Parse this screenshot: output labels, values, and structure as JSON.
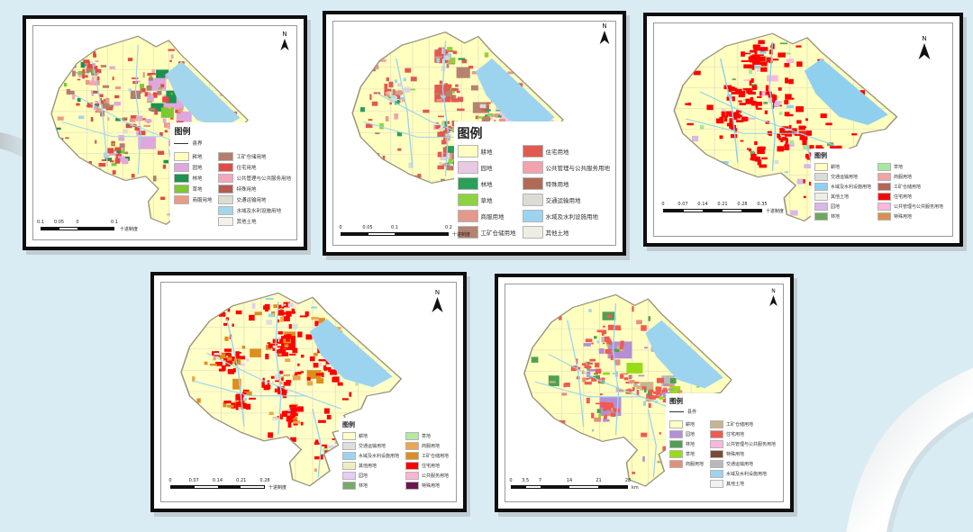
{
  "page": {
    "background": "#d9ecf4",
    "panel_border": "#0e0e0e",
    "panel_shadow": "#c0ccd2"
  },
  "maps": [
    {
      "north_label": "N",
      "legend": {
        "title": "图例",
        "line_item": "县界",
        "items_left": [
          {
            "label": "耕地",
            "color": "#FFFFBE"
          },
          {
            "label": "园地",
            "color": "#DFA8DC"
          },
          {
            "label": "林地",
            "color": "#1D9150"
          },
          {
            "label": "草地",
            "color": "#7FC832"
          },
          {
            "label": "商服用地",
            "color": "#E89B85"
          }
        ],
        "items_right": [
          {
            "label": "工矿仓储用地",
            "color": "#B57D6E"
          },
          {
            "label": "住宅用地",
            "color": "#E14B45"
          },
          {
            "label": "公共管理与公共服务用地",
            "color": "#F4A7B9"
          },
          {
            "label": "特殊用地",
            "color": "#B55A50"
          },
          {
            "label": "交通运输用地",
            "color": "#DCDCD2"
          },
          {
            "label": "水域及水利设施用地",
            "color": "#A3D5EC"
          },
          {
            "label": "其他土地",
            "color": "#F2F2EA"
          }
        ]
      },
      "scale": {
        "labels": [
          "0.1",
          "0.05",
          "0",
          "0.1"
        ],
        "unit": "十进制度"
      }
    },
    {
      "north_label": "N",
      "legend": {
        "title": "图例",
        "items_left": [
          {
            "label": "耕地",
            "color": "#FFFFC0"
          },
          {
            "label": "园地",
            "color": "#E7C9E3"
          },
          {
            "label": "林地",
            "color": "#2B9E57"
          },
          {
            "label": "草地",
            "color": "#8ED23F"
          },
          {
            "label": "商服用地",
            "color": "#E29A8C"
          },
          {
            "label": "工矿仓储用地",
            "color": "#B5836F"
          }
        ],
        "items_right": [
          {
            "label": "住宅用地",
            "color": "#E05A50"
          },
          {
            "label": "公共管理与公共服务用地",
            "color": "#F2A3AE"
          },
          {
            "label": "特殊用地",
            "color": "#B06A55"
          },
          {
            "label": "交通运输用地",
            "color": "#DCDCD4"
          },
          {
            "label": "水域及水利设施用地",
            "color": "#9CD4F0"
          },
          {
            "label": "其他土地",
            "color": "#EDEDE3"
          }
        ]
      },
      "scale": {
        "labels": [
          "0",
          "0.05",
          "0.1",
          "0.2"
        ],
        "unit": "十进制度"
      }
    },
    {
      "north_label": "N",
      "legend": {
        "title": "图例",
        "items_left": [
          {
            "label": "耕地",
            "color": "#FFFFC0"
          },
          {
            "label": "交通运输用地",
            "color": "#DCDCD4"
          },
          {
            "label": "水域及水利设施用地",
            "color": "#8FD0EF"
          },
          {
            "label": "其他土地",
            "color": "#EFEFE7"
          },
          {
            "label": "园地",
            "color": "#D9B7E6"
          },
          {
            "label": "林地",
            "color": "#6FA75E"
          }
        ],
        "items_right": [
          {
            "label": "草地",
            "color": "#A5E8A0"
          },
          {
            "label": "商服用地",
            "color": "#F2A3A3"
          },
          {
            "label": "工矿仓储用地",
            "color": "#B56456"
          },
          {
            "label": "住宅用地",
            "color": "#FE0000"
          },
          {
            "label": "公共管理与公共服务用地",
            "color": "#FFB6DC"
          },
          {
            "label": "特殊用地",
            "color": "#DC8E50"
          }
        ]
      },
      "scale": {
        "labels": [
          "0",
          "0.07",
          "0.14",
          "0.21",
          "0.28",
          "0.35"
        ],
        "unit": "十进制度"
      }
    },
    {
      "north_label": "N",
      "legend": {
        "title": "图例",
        "items_left": [
          {
            "label": "耕地",
            "color": "#FFFFC8"
          },
          {
            "label": "交通运输用地",
            "color": "#DEDEDE"
          },
          {
            "label": "水域及水利设施用地",
            "color": "#9CD4F0"
          },
          {
            "label": "其他用地",
            "color": "#EFEDBF"
          },
          {
            "label": "园地",
            "color": "#E7CCF5"
          },
          {
            "label": "林地",
            "color": "#7BA96B"
          }
        ],
        "items_right": [
          {
            "label": "草地",
            "color": "#B7E8A3"
          },
          {
            "label": "商服用地",
            "color": "#E8A84F"
          },
          {
            "label": "工矿仓储用地",
            "color": "#DE8E1E"
          },
          {
            "label": "住宅用地",
            "color": "#FE0000"
          },
          {
            "label": "公共服务用地",
            "color": "#FFB4D2"
          },
          {
            "label": "特殊用地",
            "color": "#6E1650"
          }
        ]
      },
      "scale": {
        "labels": [
          "0",
          "0.07",
          "0.14",
          "0.21",
          "0.28"
        ],
        "unit": "十进制度"
      }
    },
    {
      "north_label": "N",
      "legend": {
        "title": "图例",
        "line_item": "县界",
        "items_left": [
          {
            "label": "耕地",
            "color": "#FFFFC0"
          },
          {
            "label": "园地",
            "color": "#B48FD4"
          },
          {
            "label": "林地",
            "color": "#4FA050"
          },
          {
            "label": "草地",
            "color": "#97DC16"
          },
          {
            "label": "商服用地",
            "color": "#E2907B"
          }
        ],
        "items_right": [
          {
            "label": "工矿仓储用地",
            "color": "#C9B48E"
          },
          {
            "label": "住宅用地",
            "color": "#F05A50"
          },
          {
            "label": "公共管理与公共服务用地",
            "color": "#FFB6DC"
          },
          {
            "label": "特殊用地",
            "color": "#7B4A34"
          },
          {
            "label": "交通运输用地",
            "color": "#B9B9B9"
          },
          {
            "label": "水域及水利设施用地",
            "color": "#9CD4F0"
          },
          {
            "label": "其他土地",
            "color": "#F2F2F2"
          }
        ]
      },
      "scale": {
        "labels": [
          "0",
          "3.5",
          "7",
          "14",
          "21",
          "28"
        ],
        "unit": "km"
      }
    }
  ]
}
